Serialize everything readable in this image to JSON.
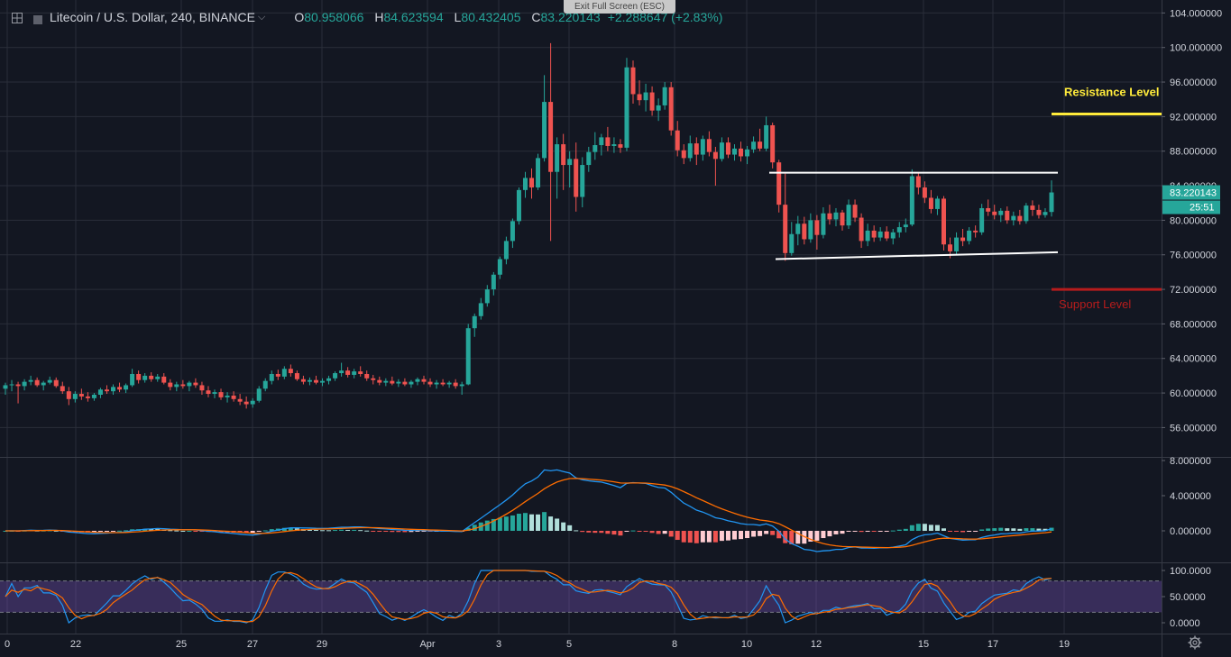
{
  "header": {
    "symbol": "Litecoin / U.S. Dollar, 240, BINANCE",
    "open_label": "O",
    "open": "80.958066",
    "high_label": "H",
    "high": "84.623594",
    "low_label": "L",
    "low": "80.432405",
    "close_label": "C",
    "close": "83.220143",
    "change": "+2.288647 (+2.83%)"
  },
  "exit_fullscreen_label": "Exit Full Screen (ESC)",
  "colors": {
    "up": "#26a69a",
    "down": "#ef5350",
    "bg": "#131722",
    "grid": "#2a2e39",
    "resistance": "#ffeb3b",
    "support": "#b71c1c",
    "macd": "#2196f3",
    "signal": "#ff6d00"
  },
  "icons": [
    "chart-crosshair-icon",
    "symbol-square-icon",
    "dropdown-chevron-icon",
    "settings-gear-icon"
  ],
  "chart_data": {
    "type": "candlestick",
    "price_axis": {
      "ticks": [
        "104.000000",
        "100.000000",
        "96.000000",
        "92.000000",
        "88.000000",
        "84.000000",
        "80.000000",
        "76.000000",
        "72.000000",
        "68.000000",
        "64.000000",
        "60.000000",
        "56.000000"
      ],
      "range": [
        52.6,
        105.5
      ]
    },
    "time_axis": {
      "labels": [
        "0",
        "22",
        "25",
        "27",
        "29",
        "Apr",
        "3",
        "5",
        "8",
        "10",
        "12",
        "15",
        "17",
        "19"
      ]
    },
    "last_price_label": "83.220143",
    "countdown_label": "25:51",
    "annotations": {
      "resistance": {
        "label": "Resistance Level",
        "price": 92.3
      },
      "support": {
        "label": "Support Level",
        "price": 72.0
      },
      "channel_top": {
        "from": 85.5,
        "to": 85.5
      },
      "channel_bottom": {
        "from": 75.5,
        "to": 76.3
      }
    },
    "candles": [
      [
        60.5,
        61.2,
        59.8,
        60.9
      ],
      [
        60.9,
        61.5,
        60.2,
        61.0
      ],
      [
        61.0,
        61.3,
        58.8,
        60.8
      ],
      [
        60.8,
        61.6,
        60.3,
        61.3
      ],
      [
        61.3,
        62.0,
        60.9,
        61.5
      ],
      [
        61.5,
        61.8,
        60.7,
        60.9
      ],
      [
        60.9,
        61.4,
        60.3,
        61.2
      ],
      [
        61.2,
        61.9,
        61.0,
        61.5
      ],
      [
        61.5,
        61.8,
        60.6,
        60.8
      ],
      [
        60.8,
        61.3,
        59.9,
        60.2
      ],
      [
        60.2,
        60.7,
        58.6,
        59.3
      ],
      [
        59.3,
        60.2,
        58.9,
        59.9
      ],
      [
        59.9,
        60.5,
        59.2,
        59.6
      ],
      [
        59.6,
        60.1,
        59.0,
        59.4
      ],
      [
        59.4,
        60.0,
        59.1,
        59.8
      ],
      [
        59.8,
        60.6,
        59.4,
        60.4
      ],
      [
        60.4,
        60.9,
        59.9,
        60.2
      ],
      [
        60.2,
        61.0,
        59.8,
        60.7
      ],
      [
        60.7,
        61.2,
        60.1,
        60.4
      ],
      [
        60.4,
        61.1,
        60.0,
        60.9
      ],
      [
        60.9,
        62.8,
        60.7,
        62.2
      ],
      [
        62.2,
        62.6,
        61.1,
        61.5
      ],
      [
        61.5,
        62.3,
        61.2,
        62.0
      ],
      [
        62.0,
        62.4,
        61.3,
        61.6
      ],
      [
        61.6,
        62.2,
        61.3,
        61.9
      ],
      [
        61.9,
        62.3,
        61.0,
        61.2
      ],
      [
        61.2,
        61.6,
        60.3,
        60.7
      ],
      [
        60.7,
        61.3,
        60.2,
        61.0
      ],
      [
        61.0,
        61.5,
        60.5,
        60.8
      ],
      [
        60.8,
        61.4,
        60.2,
        61.2
      ],
      [
        61.2,
        61.7,
        60.6,
        60.9
      ],
      [
        60.9,
        61.3,
        59.8,
        60.3
      ],
      [
        60.3,
        60.8,
        59.5,
        59.9
      ],
      [
        59.9,
        60.4,
        59.4,
        60.1
      ],
      [
        60.1,
        60.5,
        59.2,
        59.5
      ],
      [
        59.5,
        60.1,
        58.9,
        59.7
      ],
      [
        59.7,
        60.2,
        59.0,
        59.3
      ],
      [
        59.3,
        59.9,
        58.6,
        59.0
      ],
      [
        59.0,
        59.6,
        58.2,
        58.7
      ],
      [
        58.7,
        59.4,
        58.3,
        59.1
      ],
      [
        59.1,
        60.8,
        58.9,
        60.5
      ],
      [
        60.5,
        61.7,
        60.2,
        61.4
      ],
      [
        61.4,
        62.6,
        61.0,
        62.2
      ],
      [
        62.2,
        62.7,
        61.5,
        61.9
      ],
      [
        61.9,
        63.1,
        61.6,
        62.8
      ],
      [
        62.8,
        63.3,
        61.9,
        62.3
      ],
      [
        62.3,
        62.6,
        61.4,
        61.6
      ],
      [
        61.6,
        62.0,
        61.0,
        61.3
      ],
      [
        61.3,
        61.8,
        60.9,
        61.5
      ],
      [
        61.5,
        62.0,
        61.0,
        61.2
      ],
      [
        61.2,
        61.7,
        60.8,
        61.4
      ],
      [
        61.4,
        62.0,
        61.0,
        61.7
      ],
      [
        61.7,
        62.5,
        61.4,
        62.3
      ],
      [
        62.3,
        63.5,
        61.9,
        62.6
      ],
      [
        62.6,
        63.0,
        61.8,
        62.1
      ],
      [
        62.1,
        62.8,
        61.7,
        62.5
      ],
      [
        62.5,
        63.1,
        61.9,
        62.2
      ],
      [
        62.2,
        62.6,
        61.4,
        61.7
      ],
      [
        61.7,
        62.1,
        61.0,
        61.5
      ],
      [
        61.5,
        61.9,
        60.9,
        61.2
      ],
      [
        61.2,
        61.7,
        60.8,
        61.4
      ],
      [
        61.4,
        61.9,
        60.9,
        61.1
      ],
      [
        61.1,
        61.6,
        60.7,
        61.3
      ],
      [
        61.3,
        61.7,
        60.8,
        61.0
      ],
      [
        61.0,
        61.5,
        60.6,
        61.3
      ],
      [
        61.3,
        61.8,
        60.9,
        61.6
      ],
      [
        61.6,
        62.0,
        61.0,
        61.3
      ],
      [
        61.3,
        61.7,
        60.7,
        61.0
      ],
      [
        61.0,
        61.5,
        60.5,
        61.2
      ],
      [
        61.2,
        61.6,
        60.8,
        61.0
      ],
      [
        61.0,
        61.4,
        60.6,
        61.2
      ],
      [
        61.2,
        61.6,
        60.5,
        60.8
      ],
      [
        60.8,
        61.3,
        59.8,
        61.0
      ],
      [
        61.0,
        68.0,
        60.9,
        67.5
      ],
      [
        67.5,
        69.2,
        66.5,
        68.9
      ],
      [
        68.9,
        71.0,
        68.5,
        70.4
      ],
      [
        70.4,
        72.5,
        70.0,
        72.0
      ],
      [
        72.0,
        74.0,
        71.3,
        73.7
      ],
      [
        73.7,
        75.8,
        73.2,
        75.5
      ],
      [
        75.5,
        78.1,
        74.9,
        77.6
      ],
      [
        77.6,
        80.2,
        76.8,
        79.9
      ],
      [
        79.9,
        83.8,
        79.5,
        83.5
      ],
      [
        83.5,
        85.6,
        82.6,
        84.9
      ],
      [
        84.9,
        86.0,
        82.5,
        83.8
      ],
      [
        83.8,
        87.7,
        83.5,
        87.2
      ],
      [
        87.2,
        96.8,
        86.8,
        93.7
      ],
      [
        93.7,
        100.5,
        77.6,
        85.6
      ],
      [
        85.6,
        89.6,
        82.5,
        88.8
      ],
      [
        88.8,
        90.0,
        83.5,
        86.4
      ],
      [
        86.4,
        88.0,
        83.8,
        87.1
      ],
      [
        87.1,
        89.0,
        81.0,
        82.7
      ],
      [
        82.7,
        87.3,
        81.5,
        86.4
      ],
      [
        86.4,
        88.5,
        85.6,
        87.9
      ],
      [
        87.9,
        90.2,
        87.0,
        88.7
      ],
      [
        88.7,
        90.0,
        87.5,
        89.6
      ],
      [
        89.6,
        90.8,
        88.0,
        88.6
      ],
      [
        88.6,
        89.6,
        87.8,
        88.8
      ],
      [
        88.8,
        89.4,
        87.8,
        88.4
      ],
      [
        88.4,
        98.8,
        88.0,
        97.7
      ],
      [
        97.7,
        98.5,
        93.5,
        94.6
      ],
      [
        94.6,
        96.2,
        93.3,
        93.9
      ],
      [
        93.9,
        95.8,
        92.6,
        94.8
      ],
      [
        94.8,
        95.5,
        92.1,
        92.7
      ],
      [
        92.7,
        94.1,
        91.5,
        93.3
      ],
      [
        93.3,
        96.0,
        92.8,
        95.4
      ],
      [
        95.4,
        96.0,
        89.8,
        90.4
      ],
      [
        90.4,
        91.5,
        87.4,
        88.1
      ],
      [
        88.1,
        88.8,
        86.5,
        87.2
      ],
      [
        87.2,
        89.8,
        86.8,
        88.9
      ],
      [
        88.9,
        89.6,
        86.4,
        87.6
      ],
      [
        87.6,
        89.8,
        86.9,
        89.4
      ],
      [
        89.4,
        90.3,
        87.4,
        87.9
      ],
      [
        87.9,
        88.5,
        84.0,
        87.1
      ],
      [
        87.1,
        89.6,
        86.8,
        89.0
      ],
      [
        89.0,
        89.6,
        87.2,
        87.6
      ],
      [
        87.6,
        88.8,
        86.9,
        88.3
      ],
      [
        88.3,
        89.1,
        86.8,
        87.4
      ],
      [
        87.4,
        88.6,
        86.5,
        88.2
      ],
      [
        88.2,
        89.7,
        87.8,
        89.1
      ],
      [
        89.1,
        90.6,
        88.0,
        88.3
      ],
      [
        88.3,
        92.0,
        88.0,
        91.0
      ],
      [
        91.0,
        91.3,
        86.0,
        86.7
      ],
      [
        86.7,
        87.0,
        80.9,
        81.8
      ],
      [
        81.8,
        85.4,
        75.3,
        76.2
      ],
      [
        76.2,
        79.8,
        75.9,
        78.4
      ],
      [
        78.4,
        80.5,
        77.1,
        79.6
      ],
      [
        79.6,
        80.4,
        77.2,
        77.8
      ],
      [
        77.8,
        80.8,
        77.4,
        80.0
      ],
      [
        80.0,
        80.6,
        76.6,
        78.3
      ],
      [
        78.3,
        81.5,
        77.9,
        80.8
      ],
      [
        80.8,
        81.8,
        79.5,
        80.1
      ],
      [
        80.1,
        81.4,
        79.3,
        80.9
      ],
      [
        80.9,
        81.2,
        78.8,
        79.4
      ],
      [
        79.4,
        82.4,
        79.0,
        81.8
      ],
      [
        81.8,
        82.4,
        79.8,
        80.3
      ],
      [
        80.3,
        80.8,
        76.8,
        77.6
      ],
      [
        77.6,
        79.6,
        77.0,
        78.8
      ],
      [
        78.8,
        79.4,
        77.5,
        78.0
      ],
      [
        78.0,
        79.2,
        77.6,
        78.7
      ],
      [
        78.7,
        79.3,
        77.6,
        77.9
      ],
      [
        77.9,
        79.0,
        77.2,
        78.6
      ],
      [
        78.6,
        79.8,
        78.0,
        79.2
      ],
      [
        79.2,
        80.2,
        78.6,
        79.5
      ],
      [
        79.5,
        85.9,
        79.3,
        85.1
      ],
      [
        85.1,
        85.5,
        83.0,
        83.8
      ],
      [
        83.8,
        84.5,
        82.0,
        82.6
      ],
      [
        82.6,
        83.5,
        80.8,
        81.3
      ],
      [
        81.3,
        82.8,
        80.6,
        82.5
      ],
      [
        82.5,
        82.8,
        76.5,
        77.2
      ],
      [
        77.2,
        78.0,
        75.6,
        76.4
      ],
      [
        76.4,
        78.6,
        76.0,
        78.0
      ],
      [
        78.0,
        79.0,
        77.0,
        77.6
      ],
      [
        77.6,
        79.2,
        77.2,
        78.8
      ],
      [
        78.8,
        79.4,
        78.0,
        78.6
      ],
      [
        78.6,
        81.9,
        78.3,
        81.4
      ],
      [
        81.4,
        82.4,
        80.5,
        81.0
      ],
      [
        81.0,
        81.8,
        80.1,
        80.6
      ],
      [
        80.6,
        81.4,
        79.8,
        81.1
      ],
      [
        81.1,
        81.6,
        79.6,
        80.0
      ],
      [
        80.0,
        81.0,
        79.4,
        80.5
      ],
      [
        80.5,
        81.2,
        79.5,
        79.9
      ],
      [
        79.9,
        82.0,
        79.6,
        81.7
      ],
      [
        81.7,
        82.3,
        80.5,
        81.2
      ],
      [
        81.2,
        81.8,
        80.2,
        80.6
      ],
      [
        80.6,
        81.4,
        80.3,
        80.96
      ],
      [
        80.96,
        84.62,
        80.43,
        83.22
      ]
    ],
    "macd_axis": {
      "ticks": [
        "8.000000",
        "4.000000",
        "0.000000"
      ]
    },
    "stoch_axis": {
      "ticks": [
        "100.0000",
        "50.0000",
        "0.0000"
      ]
    }
  }
}
